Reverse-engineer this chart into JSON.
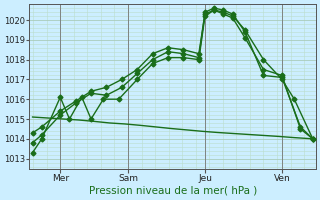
{
  "title": "",
  "xlabel": "Pression niveau de la mer( hPa )",
  "background_color": "#cceeff",
  "grid_color_major": "#aaccbb",
  "grid_color_minor": "#bbddcc",
  "line_color": "#1a6e1a",
  "ylim": [
    1012.5,
    1020.8
  ],
  "xlim": [
    -0.1,
    9.2
  ],
  "yticks": [
    1013,
    1014,
    1015,
    1016,
    1017,
    1018,
    1019,
    1020
  ],
  "xtick_positions": [
    0.9,
    3.1,
    5.6,
    8.1
  ],
  "xtick_labels": [
    "Mer",
    "Sam",
    "Jeu",
    "Ven"
  ],
  "vlines": [
    0.9,
    3.1,
    5.6,
    8.1
  ],
  "series": [
    {
      "x": [
        0.0,
        0.3,
        0.9,
        1.2,
        1.6,
        1.9,
        2.3,
        2.8,
        3.4,
        3.9,
        4.4,
        4.9,
        5.4,
        5.6,
        5.9,
        6.2,
        6.5,
        6.9,
        7.5,
        8.1,
        8.5,
        9.1
      ],
      "y": [
        1013.3,
        1014.0,
        1016.1,
        1015.0,
        1016.1,
        1015.0,
        1016.0,
        1016.0,
        1017.0,
        1017.8,
        1018.1,
        1018.1,
        1018.0,
        1020.2,
        1020.5,
        1020.4,
        1020.2,
        1019.5,
        1018.0,
        1017.0,
        1016.0,
        1014.0
      ],
      "marker": "D",
      "markersize": 2.5,
      "linewidth": 1.0
    },
    {
      "x": [
        0.0,
        0.3,
        0.9,
        1.4,
        1.9,
        2.4,
        2.9,
        3.4,
        3.9,
        4.4,
        4.9,
        5.4,
        5.6,
        5.9,
        6.2,
        6.5,
        6.9,
        7.5,
        8.1,
        8.7,
        9.1
      ],
      "y": [
        1013.8,
        1014.2,
        1015.2,
        1015.8,
        1016.3,
        1016.2,
        1016.6,
        1017.3,
        1018.0,
        1018.4,
        1018.3,
        1018.1,
        1020.4,
        1020.6,
        1020.5,
        1020.3,
        1019.4,
        1017.2,
        1017.1,
        1014.6,
        1014.0
      ],
      "marker": "D",
      "markersize": 2.5,
      "linewidth": 1.0
    },
    {
      "x": [
        0.0,
        0.3,
        0.9,
        1.4,
        1.9,
        2.4,
        2.9,
        3.4,
        3.9,
        4.4,
        4.9,
        5.4,
        5.6,
        5.9,
        6.2,
        6.5,
        6.9,
        7.5,
        8.1,
        8.7,
        9.1
      ],
      "y": [
        1014.3,
        1014.6,
        1015.4,
        1015.9,
        1016.4,
        1016.6,
        1017.0,
        1017.5,
        1018.3,
        1018.6,
        1018.5,
        1018.3,
        1020.3,
        1020.5,
        1020.3,
        1020.1,
        1019.1,
        1017.5,
        1017.2,
        1014.5,
        1014.0
      ],
      "marker": "D",
      "markersize": 2.5,
      "linewidth": 1.0
    },
    {
      "x": [
        0.0,
        0.5,
        1.0,
        1.5,
        2.0,
        2.5,
        3.0,
        3.5,
        4.0,
        4.5,
        5.0,
        5.5,
        6.0,
        6.5,
        7.0,
        7.5,
        8.0,
        8.5,
        9.1
      ],
      "y": [
        1015.1,
        1015.05,
        1015.0,
        1014.95,
        1014.88,
        1014.8,
        1014.75,
        1014.68,
        1014.6,
        1014.52,
        1014.45,
        1014.38,
        1014.32,
        1014.27,
        1014.22,
        1014.17,
        1014.12,
        1014.06,
        1014.0
      ],
      "marker": null,
      "markersize": 0,
      "linewidth": 1.0
    }
  ]
}
